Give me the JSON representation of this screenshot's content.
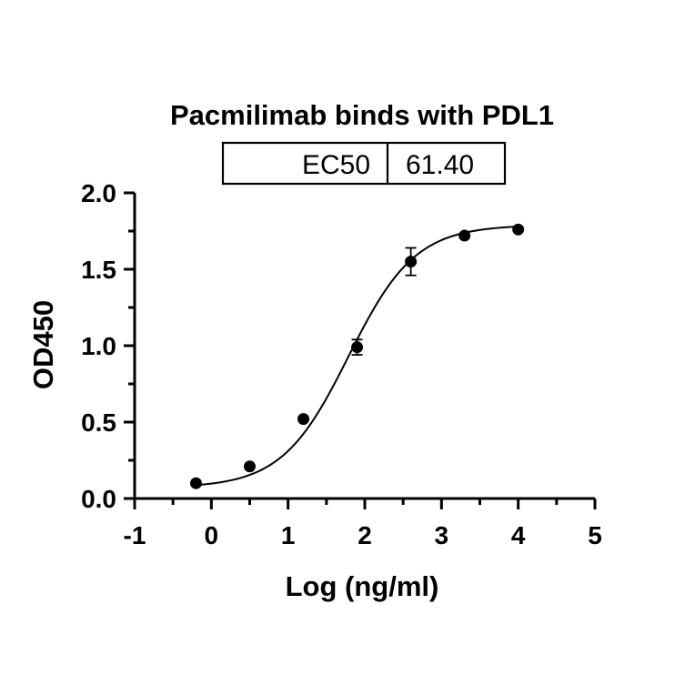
{
  "chart_data": {
    "type": "scatter",
    "title": "Pacmilimab binds with PDL1",
    "xlabel": "Log (ng/ml)",
    "ylabel": "OD450",
    "xlim": [
      -1,
      5
    ],
    "ylim": [
      0,
      2.0
    ],
    "x_ticks": [
      "-1",
      "0",
      "1",
      "2",
      "3",
      "4",
      "5"
    ],
    "y_ticks": [
      "0.0",
      "0.5",
      "1.0",
      "1.5",
      "2.0"
    ],
    "points": [
      {
        "x": -0.2,
        "y": 0.1,
        "err": 0.0
      },
      {
        "x": 0.5,
        "y": 0.21,
        "err": 0.0
      },
      {
        "x": 1.2,
        "y": 0.52,
        "err": 0.0
      },
      {
        "x": 1.9,
        "y": 0.99,
        "err": 0.05
      },
      {
        "x": 2.6,
        "y": 1.55,
        "err": 0.09
      },
      {
        "x": 3.3,
        "y": 1.72,
        "err": 0.0
      },
      {
        "x": 4.0,
        "y": 1.76,
        "err": 0.0
      }
    ],
    "fit": {
      "model": "four-parameter logistic",
      "bottom": 0.07,
      "top": 1.79,
      "log_ec50": 1.788,
      "hill_slope": 1.0,
      "x_range": [
        -0.2,
        4.0
      ]
    },
    "table": {
      "label": "EC50",
      "value": "61.40"
    }
  }
}
